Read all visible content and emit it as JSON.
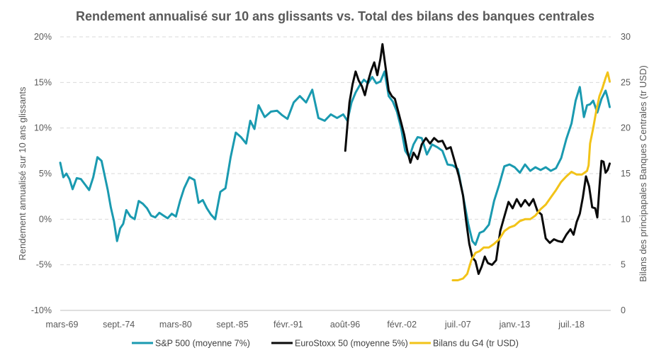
{
  "chart_data": {
    "type": "line",
    "title": "Rendement annualisé sur 10 ans glissants vs. Total des bilans des banques centrales",
    "ylabel": "Rendement annualisé sur 10 ans glissants",
    "y2label": "Bilans des principapales Banques Centrales (tr USD)",
    "ylim": [
      -10,
      20
    ],
    "y2lim": [
      0,
      30
    ],
    "xlim": [
      1969.0,
      2022.3
    ],
    "y_ticks": [
      -10,
      -5,
      0,
      5,
      10,
      15,
      20
    ],
    "y_tick_labels": [
      "-10%",
      "-5%",
      "0%",
      "5%",
      "10%",
      "15%",
      "20%"
    ],
    "y2_ticks": [
      0,
      5,
      10,
      15,
      20,
      25,
      30
    ],
    "y2_tick_labels": [
      "0",
      "5",
      "10",
      "15",
      "20",
      "25",
      "30"
    ],
    "x_ticks": [
      1969.17,
      1974.67,
      1980.17,
      1985.67,
      1991.08,
      1996.58,
      2002.08,
      2007.5,
      2013.0,
      2018.5
    ],
    "x_tick_labels": [
      "mars-69",
      "sept.-74",
      "mars-80",
      "sept.-85",
      "févr.-91",
      "août-96",
      "févr.-02",
      "juil.-07",
      "janv.-13",
      "juil.-18"
    ],
    "grid": "horizontal dashed",
    "legend_position": "bottom",
    "colors": {
      "sp500": "#1a9ab0",
      "eurostoxx": "#0a0a0a",
      "g4": "#f2c318",
      "grid": "#d9d9d9",
      "text": "#595959"
    },
    "series": [
      {
        "name": "S&P 500 (moyenne 7%)",
        "axis": "left",
        "x": [
          1969.0,
          1969.3,
          1969.6,
          1969.9,
          1970.2,
          1970.6,
          1971.0,
          1971.4,
          1971.8,
          1972.2,
          1972.6,
          1973.0,
          1973.3,
          1973.6,
          1973.9,
          1974.2,
          1974.5,
          1974.8,
          1975.1,
          1975.4,
          1975.8,
          1976.2,
          1976.6,
          1977.0,
          1977.4,
          1977.8,
          1978.2,
          1978.6,
          1979.0,
          1979.4,
          1979.8,
          1980.2,
          1980.6,
          1981.0,
          1981.5,
          1982.0,
          1982.4,
          1982.8,
          1983.2,
          1983.6,
          1984.0,
          1984.5,
          1985.0,
          1985.5,
          1986.0,
          1986.5,
          1987.0,
          1987.4,
          1987.8,
          1988.2,
          1988.8,
          1989.4,
          1990.0,
          1990.5,
          1991.0,
          1991.6,
          1992.2,
          1992.8,
          1993.4,
          1994.0,
          1994.6,
          1995.2,
          1995.8,
          1996.4,
          1996.8,
          1997.2,
          1997.6,
          1998.0,
          1998.4,
          1998.8,
          1999.2,
          1999.6,
          2000.0,
          2000.4,
          2000.8,
          2001.2,
          2001.6,
          2002.0,
          2002.4,
          2002.8,
          2003.2,
          2003.6,
          2004.0,
          2004.5,
          2005.0,
          2005.5,
          2006.0,
          2006.5,
          2007.0,
          2007.5,
          2008.0,
          2008.5,
          2008.9,
          2009.2,
          2009.6,
          2010.0,
          2010.5,
          2011.0,
          2011.5,
          2012.0,
          2012.5,
          2013.0,
          2013.5,
          2014.0,
          2014.5,
          2015.0,
          2015.5,
          2016.0,
          2016.5,
          2017.0,
          2017.5,
          2018.0,
          2018.5,
          2018.9,
          2019.3,
          2019.7,
          2020.0,
          2020.3,
          2020.6,
          2021.0,
          2021.4,
          2021.8,
          2022.0,
          2022.2
        ],
        "values": [
          6.2,
          4.6,
          5.0,
          4.4,
          3.3,
          4.5,
          4.4,
          3.8,
          3.2,
          4.6,
          6.8,
          6.4,
          4.8,
          3.2,
          1.3,
          -0.2,
          -2.4,
          -1.0,
          -0.5,
          1.0,
          0.3,
          0.0,
          2.0,
          1.7,
          1.2,
          0.4,
          0.2,
          0.7,
          0.4,
          0.1,
          0.6,
          0.3,
          2.0,
          3.4,
          4.6,
          4.3,
          1.8,
          2.1,
          1.2,
          0.5,
          0.0,
          3.0,
          3.4,
          6.8,
          9.5,
          9.0,
          8.3,
          10.8,
          9.9,
          12.5,
          11.2,
          11.8,
          11.9,
          11.4,
          11.0,
          12.8,
          13.5,
          12.8,
          14.2,
          11.1,
          10.8,
          11.5,
          11.1,
          11.5,
          10.8,
          12.8,
          13.9,
          14.7,
          15.3,
          14.9,
          15.6,
          14.9,
          15.1,
          16.2,
          13.5,
          12.9,
          11.8,
          10.0,
          7.5,
          6.8,
          8.2,
          9.0,
          8.9,
          7.1,
          8.2,
          7.9,
          7.5,
          6.0,
          5.9,
          5.5,
          2.6,
          -0.5,
          -2.4,
          -2.8,
          -1.5,
          -1.3,
          -0.6,
          2.0,
          3.8,
          5.8,
          6.0,
          5.7,
          5.1,
          6.0,
          5.3,
          5.7,
          5.4,
          5.7,
          5.3,
          5.6,
          6.7,
          8.8,
          10.5,
          13.0,
          14.5,
          11.2,
          12.5,
          12.6,
          13.0,
          11.7,
          13.2,
          14.1,
          13.3,
          12.3
        ]
      },
      {
        "name": "EuroStoxx 50 (moyenne 5%)",
        "axis": "left",
        "x": [
          1996.6,
          1996.8,
          1997.0,
          1997.3,
          1997.6,
          1997.9,
          1998.2,
          1998.5,
          1998.8,
          1999.1,
          1999.4,
          1999.7,
          2000.0,
          2000.2,
          2000.4,
          2000.6,
          2000.8,
          2001.1,
          2001.4,
          2001.7,
          2002.0,
          2002.3,
          2002.6,
          2002.9,
          2003.2,
          2003.6,
          2004.0,
          2004.4,
          2004.8,
          2005.2,
          2005.6,
          2006.0,
          2006.4,
          2006.8,
          2007.2,
          2007.6,
          2008.0,
          2008.3,
          2008.6,
          2008.9,
          2009.2,
          2009.5,
          2009.8,
          2010.1,
          2010.4,
          2010.8,
          2011.2,
          2011.6,
          2012.0,
          2012.4,
          2012.8,
          2013.2,
          2013.6,
          2014.0,
          2014.4,
          2014.8,
          2015.2,
          2015.6,
          2016.0,
          2016.4,
          2016.8,
          2017.2,
          2017.6,
          2018.0,
          2018.4,
          2018.7,
          2019.0,
          2019.3,
          2019.6,
          2019.9,
          2020.2,
          2020.5,
          2020.8,
          2021.0,
          2021.2,
          2021.4,
          2021.6,
          2021.8,
          2022.0,
          2022.2
        ],
        "values": [
          7.5,
          10.3,
          12.8,
          14.8,
          16.2,
          15.2,
          14.6,
          13.6,
          15.1,
          16.3,
          17.2,
          15.8,
          17.6,
          19.2,
          17.5,
          15.8,
          14.1,
          13.5,
          13.2,
          11.9,
          10.6,
          9.3,
          7.5,
          6.2,
          7.3,
          6.6,
          8.2,
          8.9,
          8.3,
          8.9,
          8.5,
          8.6,
          7.7,
          7.9,
          6.3,
          4.7,
          2.6,
          -0.2,
          -2.7,
          -4.2,
          -4.6,
          -6.0,
          -5.2,
          -4.1,
          -4.8,
          -5.0,
          -4.5,
          -1.3,
          0.3,
          1.9,
          1.2,
          2.2,
          1.4,
          2.1,
          1.5,
          2.2,
          0.9,
          0.5,
          -2.1,
          -2.6,
          -2.2,
          -2.4,
          -2.5,
          -1.7,
          -1.1,
          -1.7,
          -0.3,
          0.6,
          2.4,
          4.7,
          3.6,
          1.3,
          1.2,
          0.2,
          3.5,
          6.4,
          6.3,
          5.1,
          5.4,
          6.1
        ]
      },
      {
        "name": "Bilans du G4 (tr USD)",
        "axis": "right",
        "x": [
          2007.0,
          2007.5,
          2008.0,
          2008.4,
          2008.8,
          2009.2,
          2009.6,
          2010.0,
          2010.5,
          2011.0,
          2011.5,
          2012.0,
          2012.5,
          2013.0,
          2013.5,
          2014.0,
          2014.5,
          2015.0,
          2015.5,
          2016.0,
          2016.5,
          2017.0,
          2017.5,
          2018.0,
          2018.5,
          2019.0,
          2019.5,
          2020.0,
          2020.15,
          2020.3,
          2020.6,
          2020.9,
          2021.2,
          2021.5,
          2021.8,
          2022.0,
          2022.2
        ],
        "values": [
          3.3,
          3.3,
          3.5,
          4.0,
          5.5,
          6.3,
          6.5,
          6.9,
          6.9,
          7.3,
          7.8,
          8.7,
          9.1,
          9.3,
          9.8,
          10.0,
          10.0,
          10.4,
          11.1,
          11.6,
          12.4,
          13.2,
          14.1,
          14.7,
          15.2,
          14.9,
          14.9,
          15.3,
          15.9,
          18.3,
          20.0,
          21.9,
          23.5,
          24.4,
          25.5,
          26.1,
          25.1
        ]
      }
    ]
  }
}
